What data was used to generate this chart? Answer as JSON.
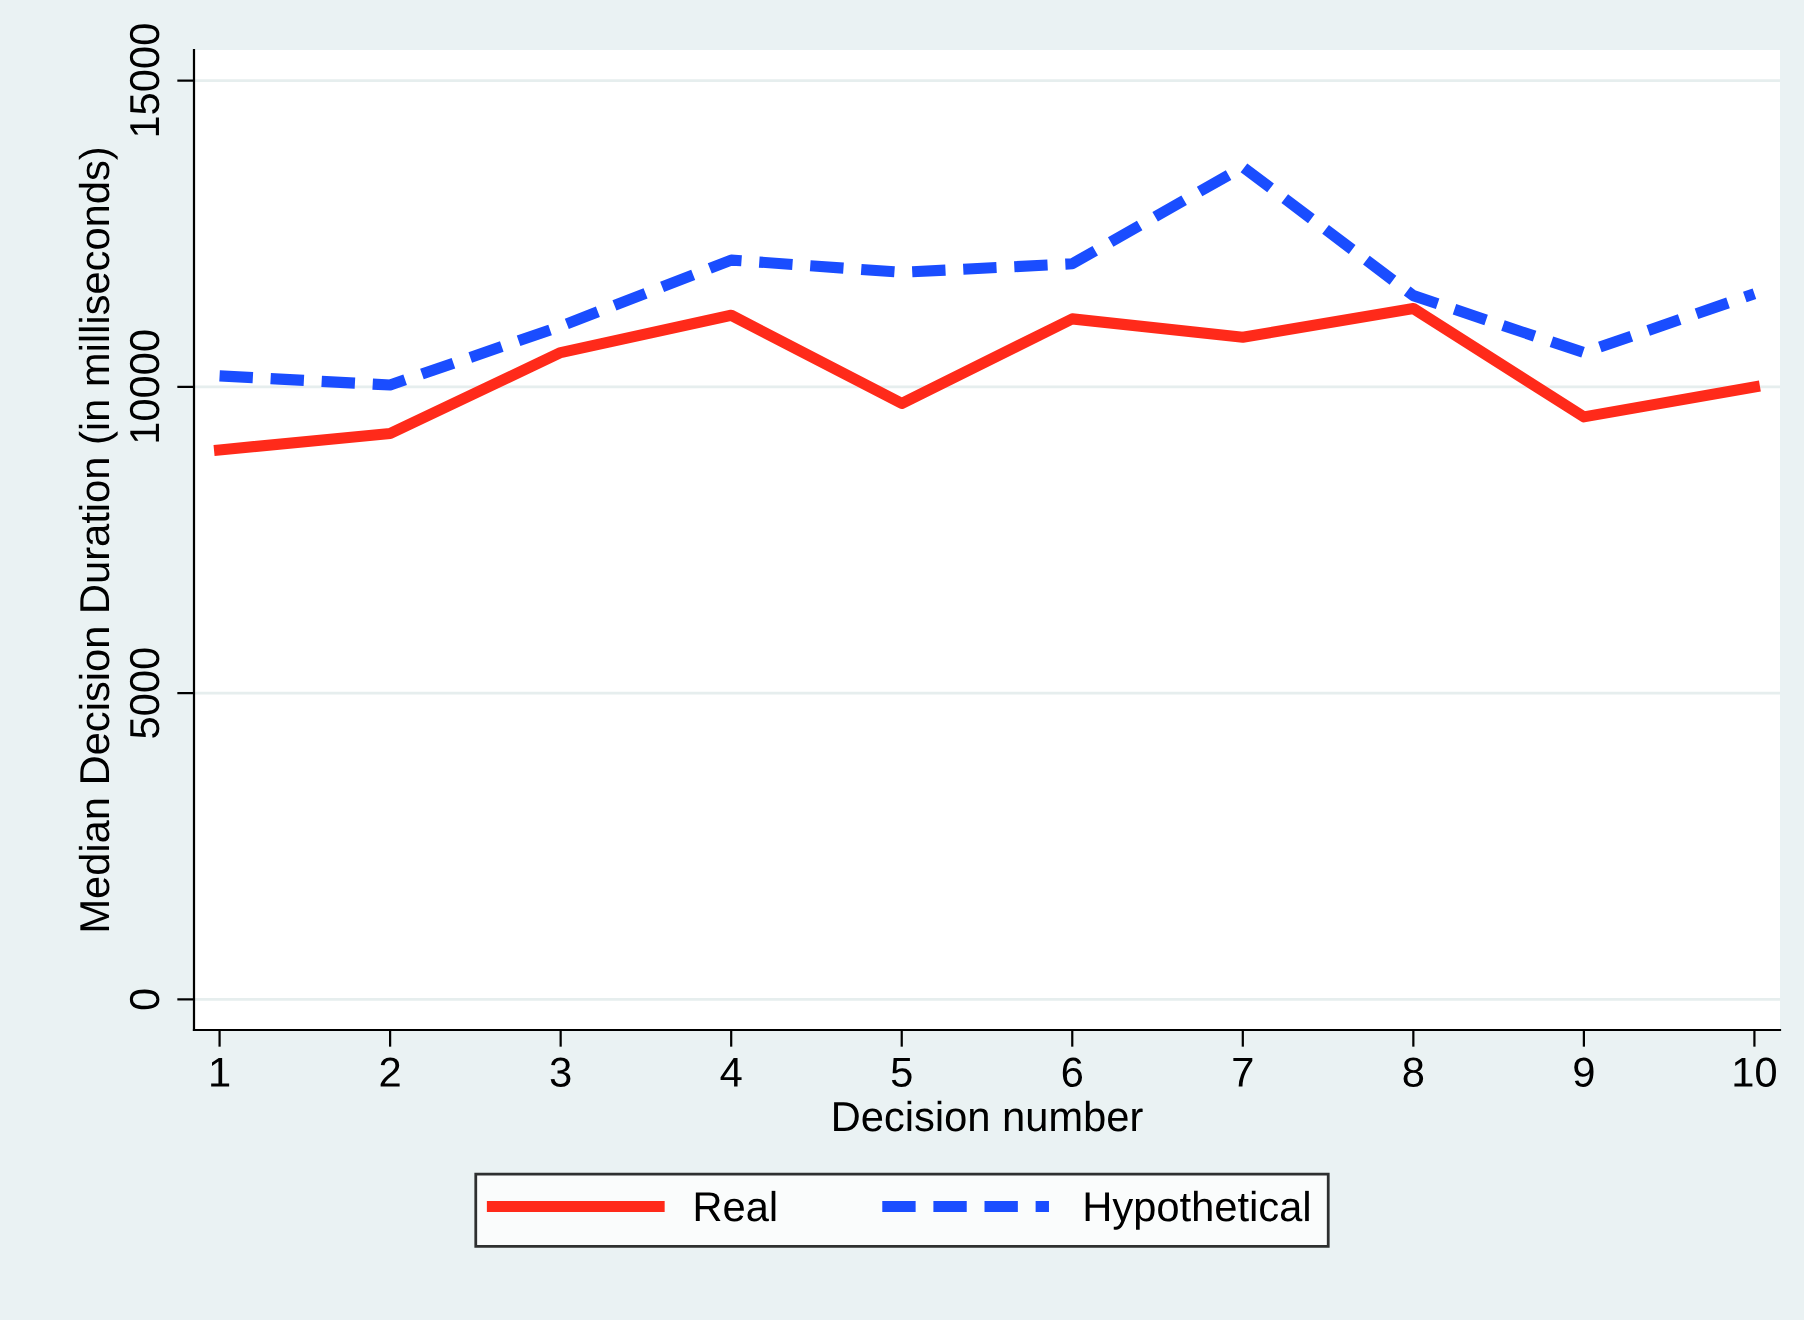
{
  "chart_data": {
    "type": "line",
    "xlabel": "Decision number",
    "ylabel": "Median Decision Duration (in milliseconds)",
    "x": [
      1,
      2,
      3,
      4,
      5,
      6,
      7,
      8,
      9,
      10
    ],
    "series": [
      {
        "name": "Real",
        "color": "#ff2a1a",
        "line_style": "solid",
        "values": [
          8970,
          9240,
          10560,
          11170,
          9730,
          11110,
          10810,
          11280,
          9510,
          10000
        ]
      },
      {
        "name": "Hypothetical",
        "color": "#1a4dff",
        "line_style": "dashed",
        "values": [
          10180,
          10030,
          10990,
          12070,
          11870,
          12010,
          13590,
          11490,
          10560,
          11520
        ]
      }
    ],
    "xlim": [
      0.85,
      10.15
    ],
    "xticks": [
      1,
      2,
      3,
      4,
      5,
      6,
      7,
      8,
      9,
      10
    ],
    "ylim": [
      -500,
      15500
    ],
    "yticks": [
      0,
      5000,
      10000,
      15000
    ],
    "grid": "y",
    "legend": "bottom"
  }
}
